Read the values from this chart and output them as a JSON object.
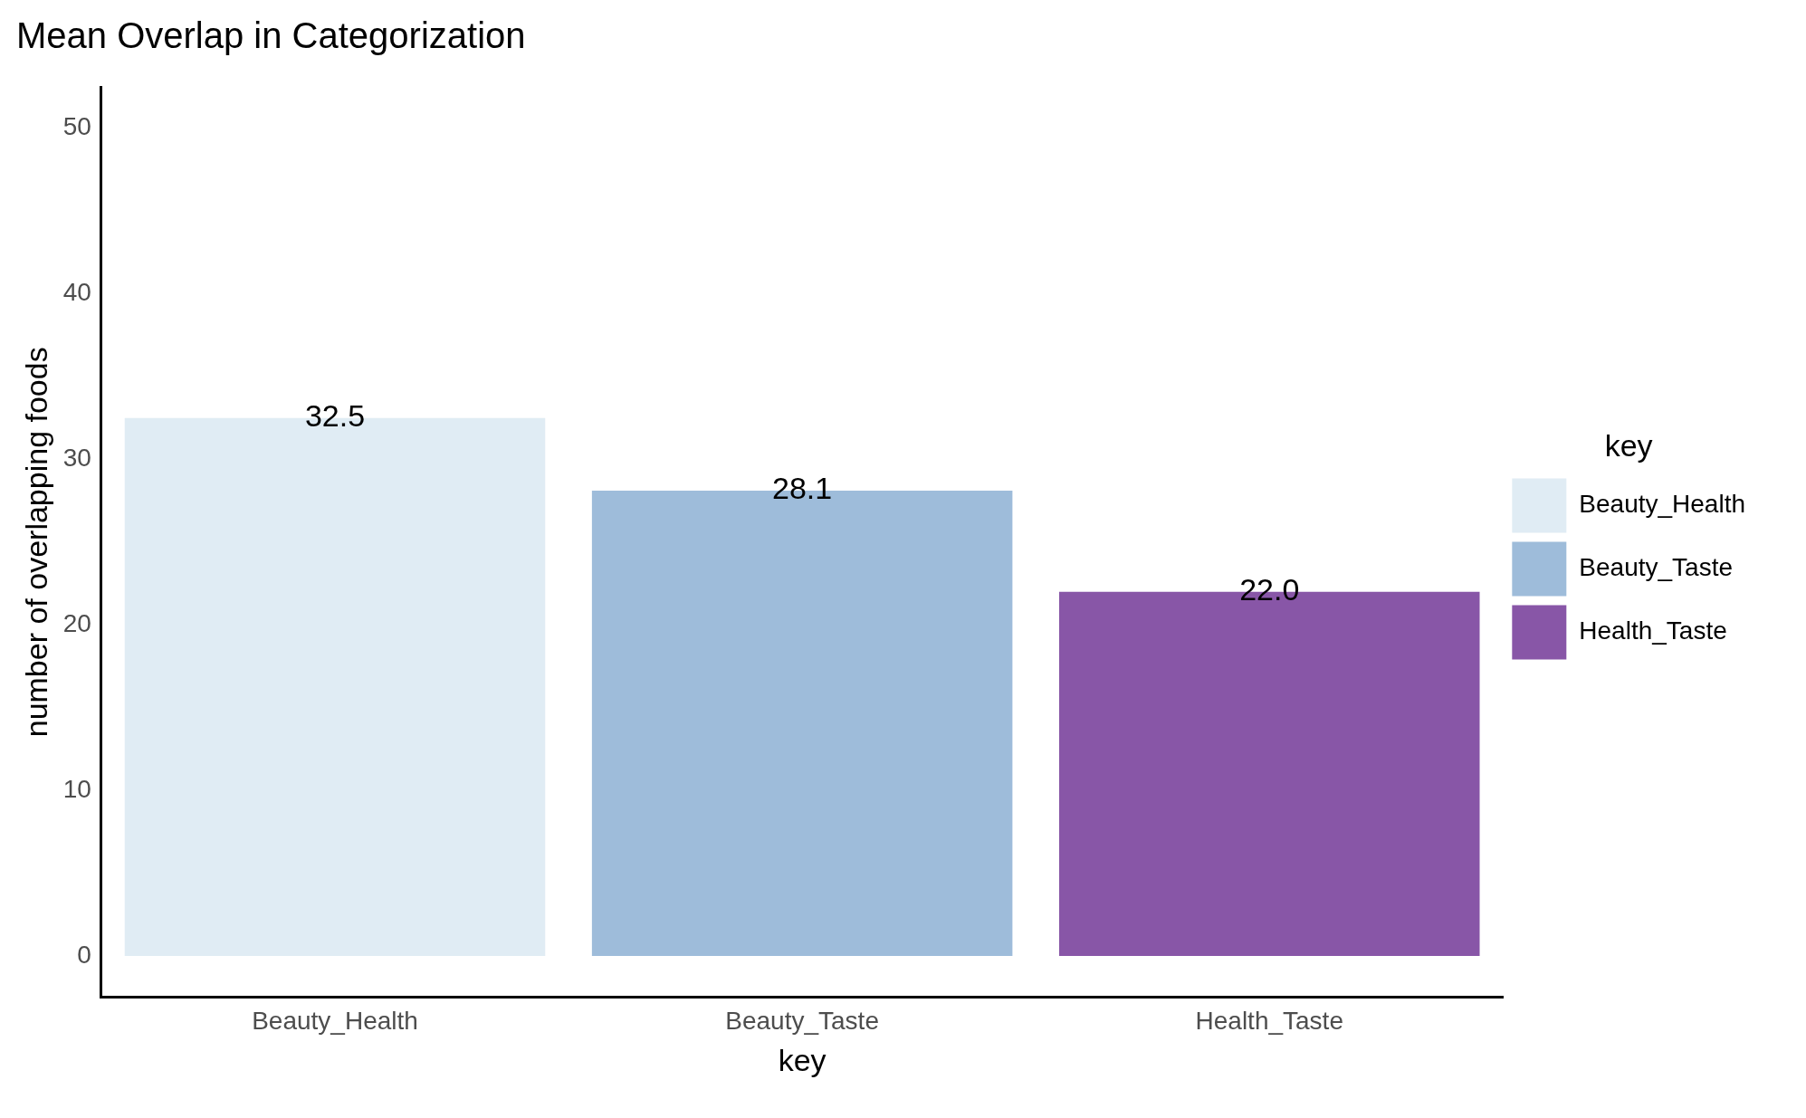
{
  "chart_data": {
    "type": "bar",
    "title": "Mean Overlap in Categorization",
    "xlabel": "key",
    "ylabel": "number of overlapping foods",
    "legend_title": "key",
    "categories": [
      "Beauty_Health",
      "Beauty_Taste",
      "Health_Taste"
    ],
    "series": [
      {
        "name": "Beauty_Health",
        "color": "#e0ecf4",
        "values": [
          32.5,
          null,
          null
        ],
        "value_labels": [
          "32.5",
          null,
          null
        ]
      },
      {
        "name": "Beauty_Taste",
        "color": "#9ebcda",
        "values": [
          null,
          28.1,
          null
        ],
        "value_labels": [
          null,
          "28.1",
          null
        ]
      },
      {
        "name": "Health_Taste",
        "color": "#8856a7",
        "values": [
          null,
          null,
          22.0
        ],
        "value_labels": [
          null,
          null,
          "22.0"
        ]
      }
    ],
    "ylim": [
      -2.5,
      52.5
    ],
    "yticks": [
      0,
      10,
      20,
      30,
      40,
      50
    ],
    "grid": false,
    "legend": "right"
  }
}
